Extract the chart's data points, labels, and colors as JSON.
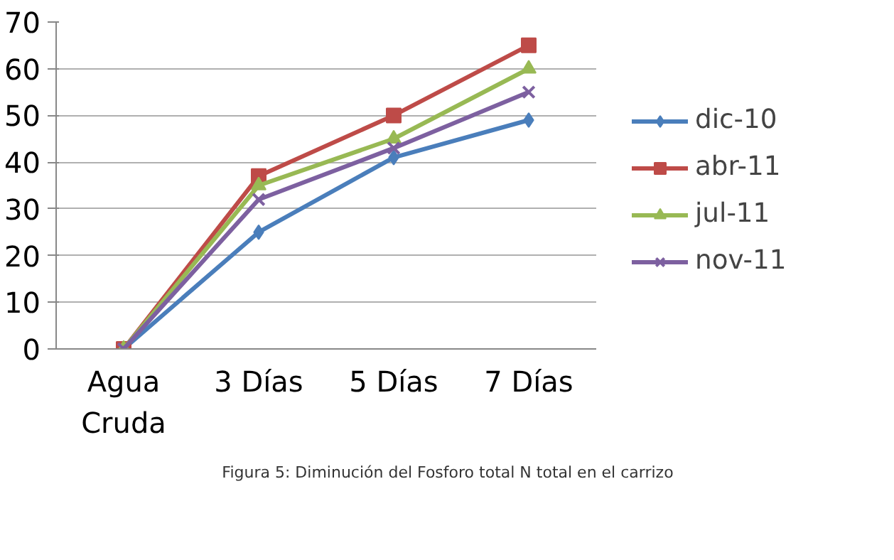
{
  "chart_data": {
    "type": "line",
    "categories": [
      "Agua\nCruda",
      "3 Días",
      "5 Días",
      "7 Días"
    ],
    "series": [
      {
        "name": "dic-10",
        "color": "#4a7ebb",
        "marker": "diamond",
        "values": [
          0,
          25,
          41,
          49
        ]
      },
      {
        "name": "abr-11",
        "color": "#be4b48",
        "marker": "square",
        "values": [
          0,
          37,
          50,
          65
        ]
      },
      {
        "name": "jul-11",
        "color": "#98b954",
        "marker": "triangle",
        "values": [
          0,
          35,
          45,
          60
        ]
      },
      {
        "name": "nov-11",
        "color": "#7d60a0",
        "marker": "x",
        "values": [
          0,
          32,
          43,
          55
        ]
      }
    ],
    "ylim": [
      0,
      70
    ],
    "yticks": [
      0,
      10,
      20,
      30,
      40,
      50,
      60,
      70
    ],
    "grid": "y",
    "legend": "right",
    "annotations": [
      "Figura 5: Diminución  del Fosforo total N total en el carrizo"
    ]
  }
}
